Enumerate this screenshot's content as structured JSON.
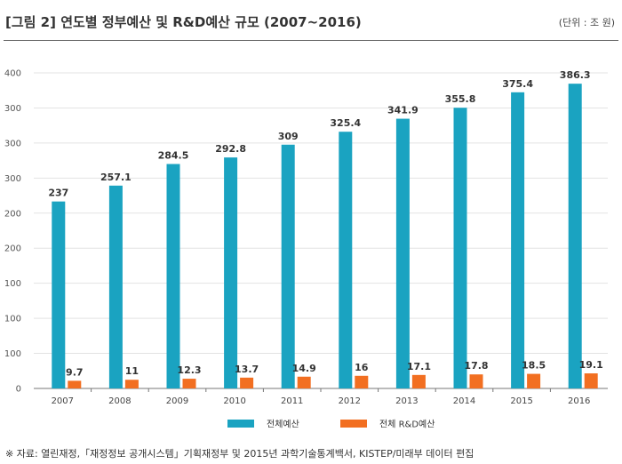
{
  "header": {
    "title": "[그림 2] 연도별 정부예산 및 R&D예산 규모 (2007~2016)",
    "unit": "(단위 : 조 원)"
  },
  "source": "※ 자료: 열린재정,「재정정보 공개시스템」기획재정부 및 2015년 과학기술통계백서, KISTEP/미래부 데이터 편집",
  "colors": {
    "total_budget": "#1aa3c1",
    "rnd_budget": "#f26f21",
    "grid": "#e3e3e3",
    "axis": "#777777"
  },
  "chart_data": {
    "type": "bar",
    "categories": [
      "2007",
      "2008",
      "2009",
      "2010",
      "2011",
      "2012",
      "2013",
      "2014",
      "2015",
      "2016"
    ],
    "series": [
      {
        "name": "전체예산",
        "values": [
          237,
          257.1,
          284.5,
          292.8,
          309,
          325.4,
          341.9,
          355.8,
          375.4,
          386.3
        ],
        "labels": [
          "237",
          "257.1",
          "284.5",
          "292.8",
          "309",
          "325.4",
          "341.9",
          "355.8",
          "375.4",
          "386.3"
        ]
      },
      {
        "name": "전체 R&D예산",
        "values": [
          9.7,
          11,
          12.3,
          13.7,
          14.9,
          16,
          17.1,
          17.8,
          18.5,
          19.1
        ],
        "labels": [
          "9.7",
          "11",
          "12.3",
          "13.7",
          "14.9",
          "16",
          "17.1",
          "17.8",
          "18.5",
          "19.1"
        ]
      }
    ],
    "y_tick_labels": [
      "0",
      "100",
      "100",
      "100",
      "200",
      "200",
      "300",
      "300",
      "300",
      "400"
    ],
    "ylim": [
      0,
      400
    ],
    "grid": true,
    "legend_position": "bottom-center"
  }
}
